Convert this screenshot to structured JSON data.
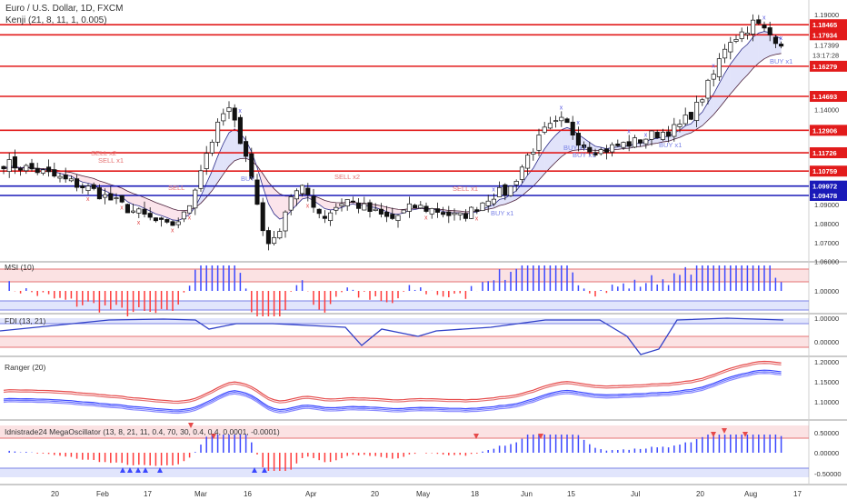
{
  "header": {
    "title": "Euro / U.S. Dollar, 1D, FXCM",
    "indicator": "Kenji (21, 8, 11, 1, 0.005)"
  },
  "price_axis": {
    "ticks": [
      "1.19000",
      "1.17399",
      "1.15000",
      "1.14000",
      "1.12000",
      "1.10000",
      "1.09000",
      "1.08000",
      "1.07000",
      "1.06000"
    ],
    "current_price": "1.17399",
    "countdown": "13:17:28",
    "levels": [
      {
        "label": "1.18465",
        "value": 1.18465,
        "color": "#e21b1b"
      },
      {
        "label": "1.17934",
        "value": 1.17934,
        "color": "#e21b1b"
      },
      {
        "label": "1.16279",
        "value": 1.16279,
        "color": "#e21b1b"
      },
      {
        "label": "1.14693",
        "value": 1.14693,
        "color": "#e21b1b"
      },
      {
        "label": "1.12906",
        "value": 1.12906,
        "color": "#e21b1b"
      },
      {
        "label": "1.11726",
        "value": 1.11726,
        "color": "#e21b1b"
      },
      {
        "label": "1.10759",
        "value": 1.10759,
        "color": "#e21b1b"
      },
      {
        "label": "1.09972",
        "value": 1.09972,
        "color": "#1a1ab8"
      },
      {
        "label": "1.09478",
        "value": 1.09478,
        "color": "#1a1ab8"
      }
    ]
  },
  "signals": [
    "SELL x2",
    "SELL x1",
    "SELL",
    "BUY",
    "SELL x2",
    "SELL x1",
    "BUY x1",
    "BUY x1",
    "BUY x1",
    "BUY x1",
    "BUY x1"
  ],
  "panes": [
    {
      "label": "MSI (10)",
      "ticks": [
        "1.00000",
        "0.00000"
      ]
    },
    {
      "label": "FDI (13, 21)",
      "ticks": [
        "1.00000",
        "0.00000"
      ]
    },
    {
      "label": "Ranger (20)",
      "ticks": [
        "1.20000",
        "1.15000",
        "1.10000"
      ]
    },
    {
      "label": "Idnistrade24 MegaOscillator (13, 8, 21, 11, 0.4, 70, 30, 0.4, 0.4, 0.0001, -0.0001)",
      "ticks": [
        "0.50000",
        "0.00000",
        "-0.50000"
      ]
    }
  ],
  "time_axis": [
    "20",
    "Feb",
    "17",
    "Mar",
    "16",
    "Apr",
    "20",
    "May",
    "18",
    "Jun",
    "15",
    "Jul",
    "20",
    "Aug",
    "17"
  ],
  "colors": {
    "red": "#e21b1b",
    "blue": "#1a1ab8",
    "osc_blue": "#3b48ff",
    "osc_red": "#ff3b3b",
    "band": "rgba(231,92,100,0.18)",
    "band_blue": "rgba(90,110,240,0.18)"
  }
}
